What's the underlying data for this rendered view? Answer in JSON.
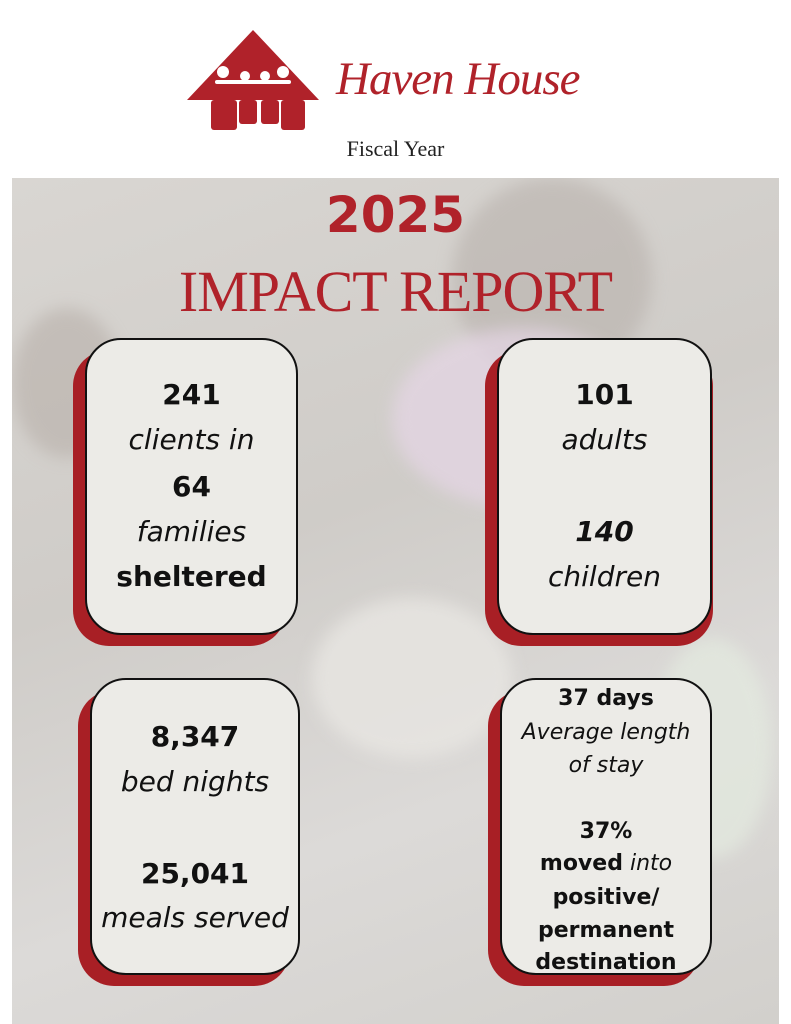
{
  "header": {
    "org_name": "Haven House",
    "subtitle": "Fiscal Year",
    "year": "2025",
    "title": "IMPACT REPORT"
  },
  "cards": [
    {
      "lines": [
        "241",
        "clients in",
        "64",
        "families",
        "sheltered"
      ]
    },
    {
      "lines": [
        "101",
        "adults",
        "140",
        "children"
      ]
    },
    {
      "lines": [
        "8,347",
        "bed nights",
        "25,041",
        "meals served"
      ]
    },
    {
      "lines": [
        "37 days",
        "Average length",
        "of stay",
        "37%",
        "moved",
        "into",
        "positive/",
        "permanent",
        "destination"
      ]
    }
  ]
}
